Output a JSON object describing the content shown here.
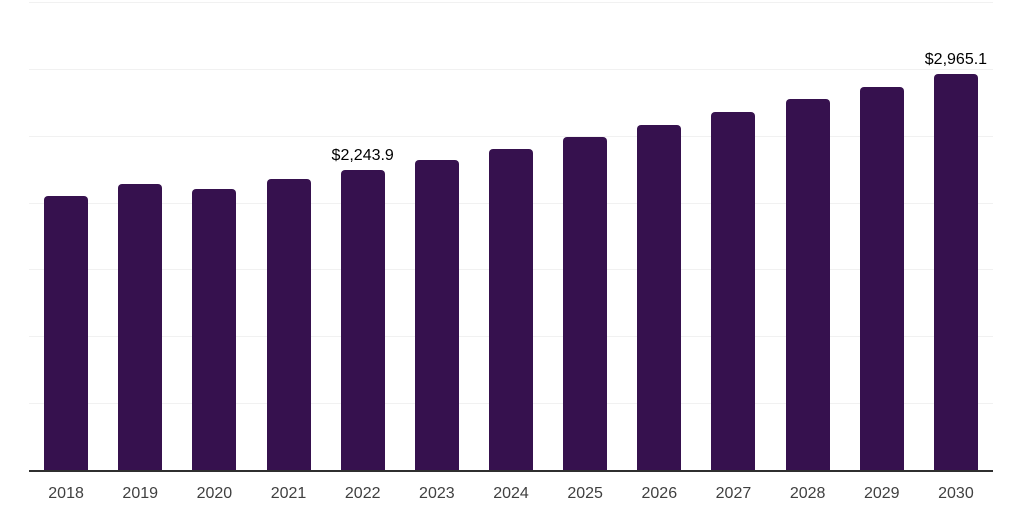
{
  "chart_data": {
    "type": "bar",
    "title": "",
    "xlabel": "",
    "ylabel": "",
    "categories": [
      "2018",
      "2019",
      "2020",
      "2021",
      "2022",
      "2023",
      "2024",
      "2025",
      "2026",
      "2027",
      "2028",
      "2029",
      "2030"
    ],
    "values": [
      2050,
      2140,
      2105,
      2175,
      2243.9,
      2320,
      2400,
      2490,
      2580,
      2675,
      2775,
      2865,
      2965.1
    ],
    "data_labels": [
      "",
      "",
      "",
      "",
      "$2,243.9",
      "",
      "",
      "",
      "",
      "",
      "",
      "",
      "$2,965.1"
    ],
    "ylim": [
      0,
      3500
    ],
    "gridline_step": 500,
    "grid": true,
    "legend": false,
    "y_tick_labels_visible": false,
    "colors": {
      "bar": "#36114e",
      "axis_line": "#2f2f2f",
      "gridline": "#f1f1f1",
      "data_label_text": "#000000",
      "tick_label_text": "#404040",
      "background": "#ffffff"
    }
  }
}
